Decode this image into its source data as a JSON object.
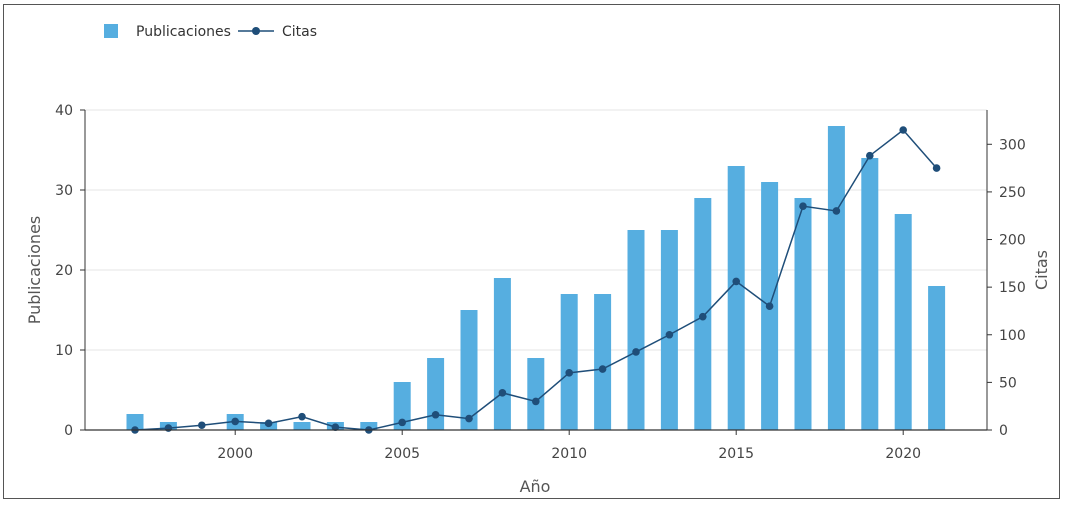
{
  "chart_data": {
    "type": "bar",
    "categories": [
      1997,
      1998,
      1999,
      2000,
      2001,
      2002,
      2003,
      2004,
      2005,
      2006,
      2007,
      2008,
      2009,
      2010,
      2011,
      2012,
      2013,
      2014,
      2015,
      2016,
      2017,
      2018,
      2019,
      2020,
      2021
    ],
    "series": [
      {
        "name": "Publicaciones",
        "type": "bar",
        "axis": "left",
        "color": "#56aee0",
        "values": [
          2,
          1,
          null,
          2,
          1,
          1,
          1,
          1,
          6,
          9,
          15,
          19,
          9,
          17,
          17,
          25,
          25,
          29,
          33,
          31,
          29,
          38,
          34,
          27,
          18
        ]
      },
      {
        "name": "Citas",
        "type": "line",
        "axis": "right",
        "color": "#1f4e79",
        "values": [
          0,
          2,
          5,
          9,
          7,
          14,
          3,
          0,
          8,
          16,
          12,
          39,
          30,
          60,
          64,
          82,
          100,
          119,
          156,
          130,
          235,
          230,
          288,
          315,
          275
        ]
      }
    ],
    "xlabel": "Año",
    "ylabel": "Publicaciones",
    "y2label": "Citas",
    "ylim": [
      0,
      40
    ],
    "y2lim": [
      0,
      336
    ],
    "xticks": [
      2000,
      2005,
      2010,
      2015,
      2020
    ],
    "yticks": [
      0,
      10,
      20,
      30,
      40
    ],
    "y2ticks": [
      0,
      50,
      100,
      150,
      200,
      250,
      300
    ],
    "legend_position": "top-left",
    "grid": true
  }
}
